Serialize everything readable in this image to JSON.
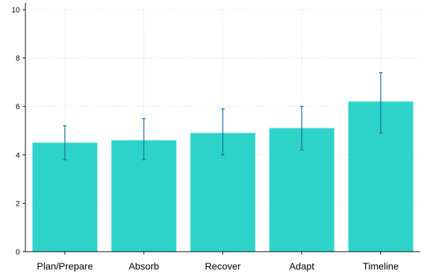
{
  "chart_data": {
    "type": "bar",
    "categories": [
      "Plan/Prepare",
      "Absorb",
      "Recover",
      "Adapt",
      "Timeline"
    ],
    "values": [
      4.5,
      4.6,
      4.9,
      5.1,
      6.2
    ],
    "error_low": [
      3.8,
      3.8,
      4.0,
      4.2,
      4.9
    ],
    "error_high": [
      5.2,
      5.5,
      5.9,
      6.0,
      7.4
    ],
    "title": "",
    "xlabel": "",
    "ylabel": "",
    "ylim": [
      0,
      10
    ],
    "yticks": [
      "0",
      "2",
      "4",
      "6",
      "8",
      "10"
    ],
    "grid": true,
    "legend": "none",
    "colors": {
      "bar_fill": "#2dd3c8",
      "bar_edge": "#7fe3dc",
      "error_bar": "#1a6e9e",
      "grid": "#d8d8d8",
      "axis": "#000000"
    }
  }
}
